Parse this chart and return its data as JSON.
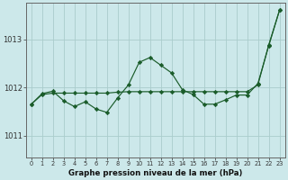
{
  "title": "Graphe pression niveau de la mer (hPa)",
  "bg_color": "#cce8ea",
  "grid_color": "#aacccc",
  "line_color": "#1a5c2a",
  "x_labels": [
    "0",
    "1",
    "2",
    "3",
    "4",
    "5",
    "6",
    "7",
    "8",
    "9",
    "10",
    "11",
    "12",
    "13",
    "14",
    "15",
    "16",
    "17",
    "18",
    "19",
    "20",
    "21",
    "22",
    "23"
  ],
  "y_ticks": [
    1011,
    1012,
    1013
  ],
  "ylim": [
    1010.55,
    1013.75
  ],
  "xlim": [
    -0.5,
    23.5
  ],
  "series_jagged": [
    1011.65,
    1011.87,
    1011.92,
    1011.72,
    1011.6,
    1011.7,
    1011.55,
    1011.48,
    1011.78,
    1012.05,
    1012.52,
    1012.62,
    1012.46,
    1012.3,
    1011.95,
    1011.85,
    1011.65,
    1011.65,
    1011.74,
    1011.84,
    1011.84,
    1012.08,
    1012.86,
    1013.6
  ],
  "series_smooth": [
    1011.65,
    1011.85,
    1011.88,
    1011.88,
    1011.88,
    1011.88,
    1011.88,
    1011.88,
    1011.9,
    1011.91,
    1011.91,
    1011.91,
    1011.91,
    1011.91,
    1011.91,
    1011.91,
    1011.91,
    1011.91,
    1011.91,
    1011.91,
    1011.91,
    1012.05,
    1012.88,
    1013.6
  ]
}
